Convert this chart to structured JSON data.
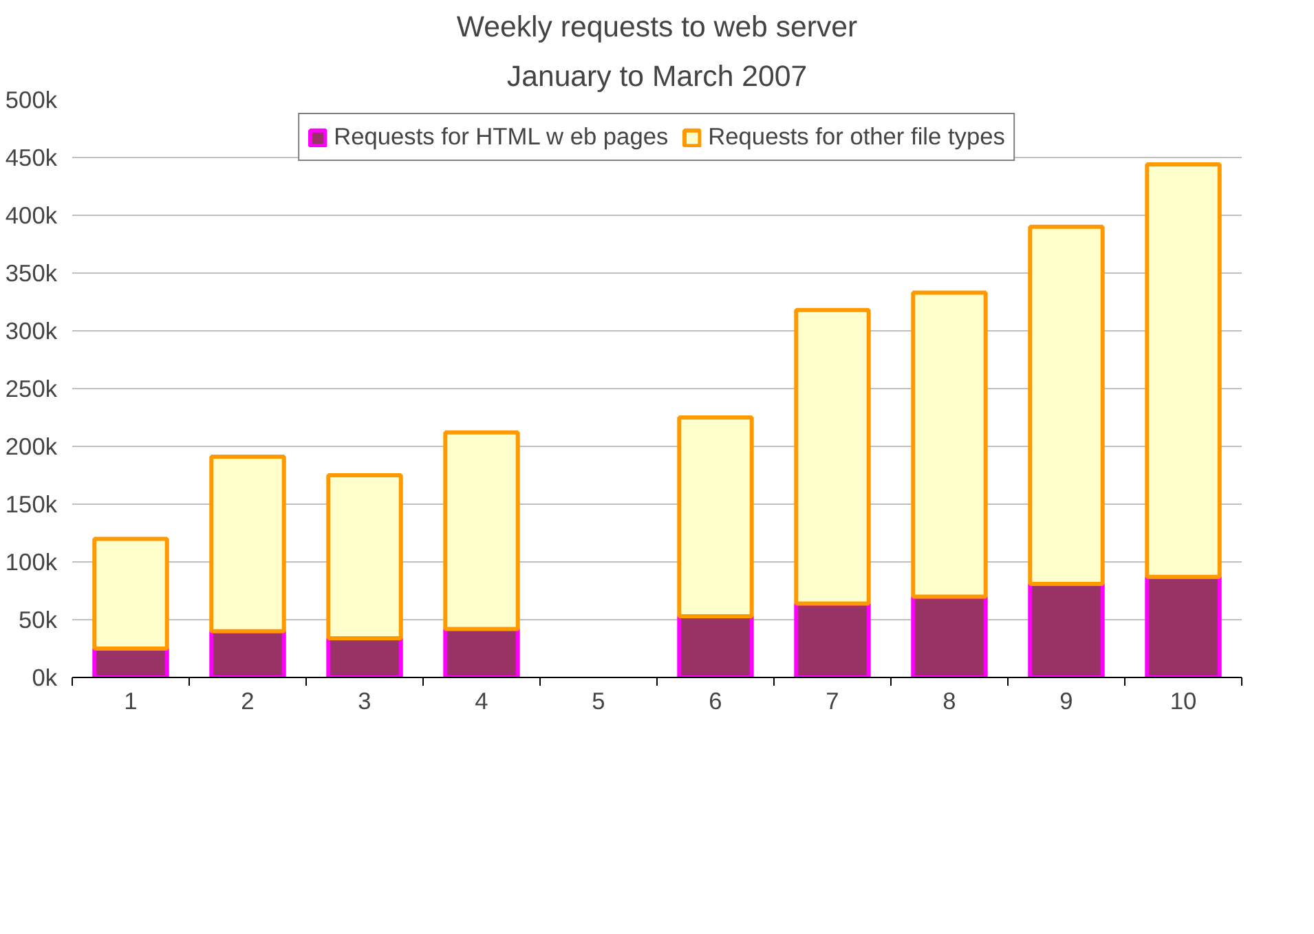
{
  "chart_data": {
    "type": "bar",
    "title": "Weekly requests to web server",
    "subtitle": "January to March 2007",
    "categories": [
      "1",
      "2",
      "3",
      "4",
      "5",
      "6",
      "7",
      "8",
      "9",
      "10"
    ],
    "stacked": true,
    "series": [
      {
        "name": "Requests for HTML w eb pages",
        "color": "#993366",
        "values": [
          25000,
          40000,
          34000,
          42000,
          null,
          53000,
          64000,
          70000,
          81000,
          87000
        ]
      },
      {
        "name": "Requests for other file types",
        "color": "#ffffcc",
        "values": [
          95000,
          151000,
          141000,
          170000,
          null,
          172000,
          254000,
          263000,
          309000,
          357000
        ]
      }
    ],
    "ylim": [
      0,
      500000
    ],
    "yticks": [
      {
        "value": 0,
        "label": "0k"
      },
      {
        "value": 50000,
        "label": "50k"
      },
      {
        "value": 100000,
        "label": "100k"
      },
      {
        "value": 150000,
        "label": "150k"
      },
      {
        "value": 200000,
        "label": "200k"
      },
      {
        "value": 250000,
        "label": "250k"
      },
      {
        "value": 300000,
        "label": "300k"
      },
      {
        "value": 350000,
        "label": "350k"
      },
      {
        "value": 400000,
        "label": "400k"
      },
      {
        "value": 450000,
        "label": "450k"
      },
      {
        "value": 500000,
        "label": "500k"
      }
    ],
    "grid": "y",
    "legend": "top"
  }
}
